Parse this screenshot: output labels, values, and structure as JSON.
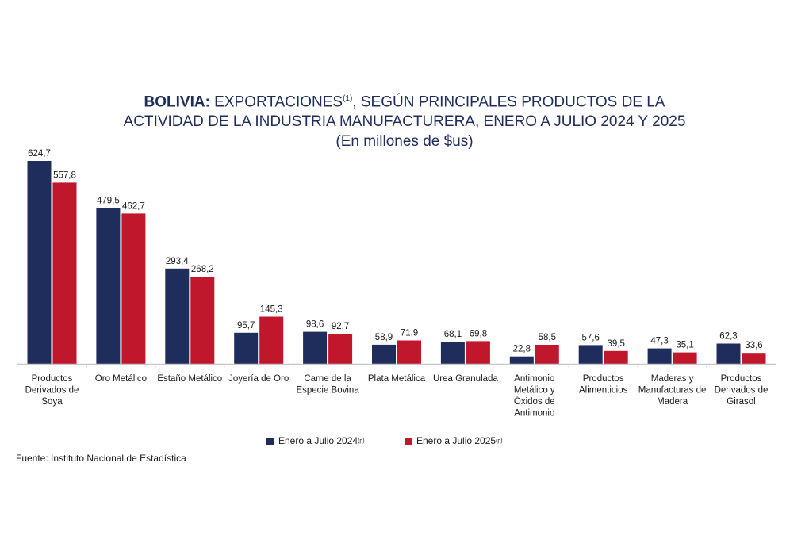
{
  "header": {
    "title_bold": "BOLIVIA:",
    "title_rest": " EXPORTACIONES",
    "title_sup": "(1)",
    "title_tail": ", SEGÚN PRINCIPALES PRODUCTOS DE LA",
    "title_line2": "ACTIVIDAD DE LA INDUSTRIA MANUFACTURERA, ENERO A JULIO 2024 Y 2025",
    "subtitle": "(En millones de $us)"
  },
  "legend": {
    "s1_label": "Enero a Julio 2024",
    "s1_sup": "(p)",
    "s2_label": "Enero a Julio  2025",
    "s2_sup": "(p)"
  },
  "source": "Fuente: Instituto Nacional de Estadística",
  "colors": {
    "s1": "#1f2d5c",
    "s2": "#c0172c",
    "axis": "#c8c8c8"
  },
  "chart_data": {
    "type": "bar",
    "categories": [
      "Productos Derivados de Soya",
      "Oro Metálico",
      "Estaño Metálico",
      "Joyería de Oro",
      "Carne de la Especie Bovina",
      "Plata Metálica",
      "Urea Granulada",
      "Antimonio Metálico y Óxidos de Antimonio",
      "Productos Alimenticios",
      "Maderas y Manufacturas de Madera",
      "Productos Derivados de Girasol"
    ],
    "category_lines": [
      [
        "Productos",
        "Derivados de",
        "Soya"
      ],
      [
        "Oro Metálico"
      ],
      [
        "Estaño Metálico"
      ],
      [
        "Joyería de Oro"
      ],
      [
        "Carne de la",
        "Especie Bovina"
      ],
      [
        "Plata Metálica"
      ],
      [
        "Urea Granulada"
      ],
      [
        "Antimonio",
        "Metálico y",
        "Óxidos de",
        "Antimonio"
      ],
      [
        "Productos",
        "Alimenticios"
      ],
      [
        "Maderas y",
        "Manufacturas de",
        "Madera"
      ],
      [
        "Productos",
        "Derivados de",
        "Girasol"
      ]
    ],
    "series": [
      {
        "name": "Enero a Julio 2024(p)",
        "values": [
          624.7,
          479.5,
          293.4,
          95.7,
          98.6,
          58.9,
          68.1,
          22.8,
          57.6,
          47.3,
          62.3
        ],
        "labels": [
          "624,7",
          "479,5",
          "293,4",
          "95,7",
          "98,6",
          "58,9",
          "68,1",
          "22,8",
          "57,6",
          "47,3",
          "62,3"
        ]
      },
      {
        "name": "Enero a Julio 2025(p)",
        "values": [
          557.8,
          462.7,
          268.2,
          145.3,
          92.7,
          71.9,
          69.8,
          58.5,
          39.5,
          35.1,
          33.6
        ],
        "labels": [
          "557,8",
          "462,7",
          "268,2",
          "145,3",
          "92,7",
          "71,9",
          "69,8",
          "58,5",
          "39,5",
          "35,1",
          "33,6"
        ]
      }
    ],
    "ylim": [
      0,
      624.7
    ],
    "grid": false,
    "legend_position": "bottom"
  }
}
